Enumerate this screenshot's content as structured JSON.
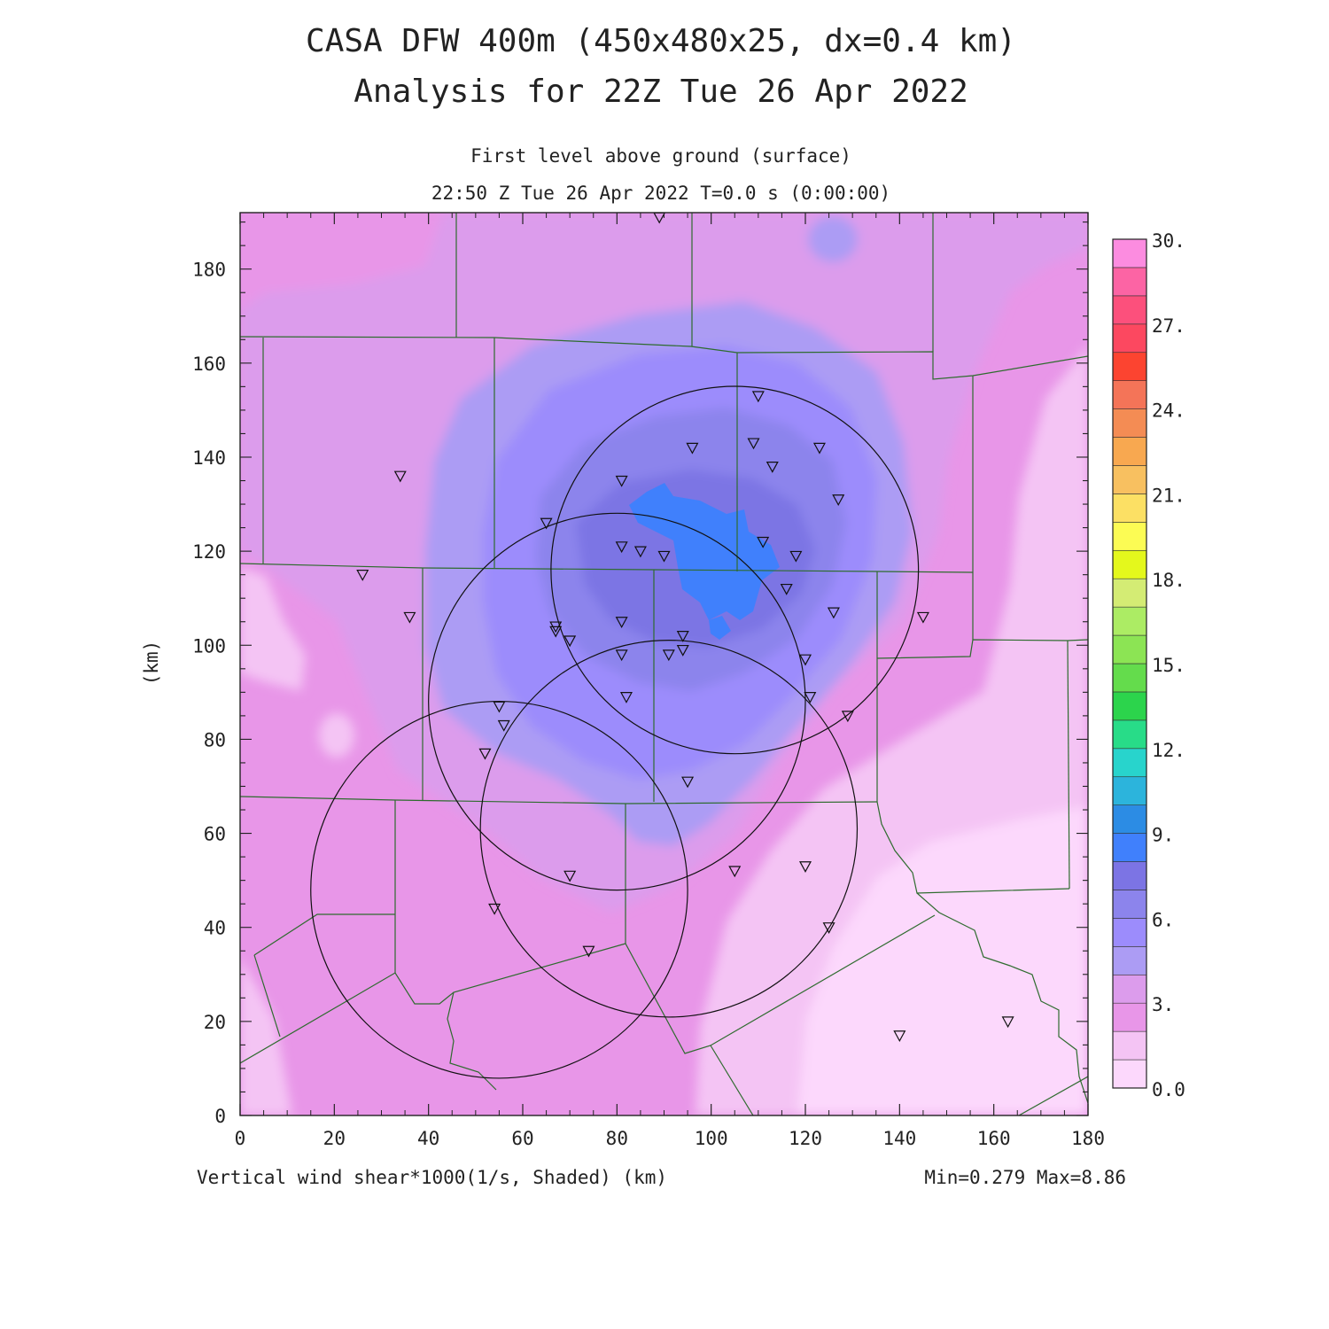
{
  "title": {
    "line1": "CASA DFW 400m (450x480x25, dx=0.4 km)",
    "line2": "Analysis for 22Z Tue 26 Apr 2022"
  },
  "subtitle": {
    "level": "First level above ground (surface)",
    "time": "22:50 Z Tue 26 Apr 2022   T=0.0 s (0:00:00)"
  },
  "axes": {
    "y_label": "(km)",
    "x_tick_labels": [
      "0",
      "20",
      "40",
      "60",
      "80",
      "100",
      "120",
      "140",
      "160",
      "180"
    ],
    "y_tick_labels": [
      "0",
      "20",
      "40",
      "60",
      "80",
      "100",
      "120",
      "140",
      "160",
      "180"
    ]
  },
  "footer": {
    "field": "Vertical wind shear*1000(1/s, Shaded)  (km)",
    "range": "Min=0.279  Max=8.86"
  },
  "colorbar": {
    "labels": [
      "0.0",
      "3.",
      "6.",
      "9.",
      "12.",
      "15.",
      "18.",
      "21.",
      "24.",
      "27.",
      "30."
    ],
    "colors": [
      "#fcd8fc",
      "#f4c4f4",
      "#e896e8",
      "#dc9cec",
      "#ac9cf4",
      "#9c8cfc",
      "#8c84ec",
      "#7c74e4",
      "#4080fc",
      "#2c8ce4",
      "#2cb4dc",
      "#28d4cc",
      "#28dc88",
      "#2cd44c",
      "#64dc4c",
      "#8ce454",
      "#acec64",
      "#d4ec74",
      "#e4f81c",
      "#fcfc54",
      "#fce064",
      "#f8c060",
      "#f8a850",
      "#f48c54",
      "#f47458",
      "#fc4430",
      "#fc4860",
      "#fc507c",
      "#fc64a4",
      "#fc8ce0"
    ]
  },
  "chart_data": {
    "type": "heatmap",
    "field": "Vertical wind shear*1000 (1/s)",
    "xlim": [
      0,
      180
    ],
    "ylim": [
      0,
      192
    ],
    "x_ticks": [
      0,
      20,
      40,
      60,
      80,
      100,
      120,
      140,
      160,
      180
    ],
    "y_ticks": [
      0,
      20,
      40,
      60,
      80,
      100,
      120,
      140,
      160,
      180
    ],
    "color_range": [
      0,
      30
    ],
    "min": 0.279,
    "max": 8.86,
    "radar_rings": [
      {
        "cx": 105,
        "cy": 116,
        "r": 39
      },
      {
        "cx": 80,
        "cy": 88,
        "r": 40
      },
      {
        "cx": 91,
        "cy": 61,
        "r": 40
      },
      {
        "cx": 55,
        "cy": 48,
        "r": 40
      }
    ],
    "stations": [
      [
        89,
        191
      ],
      [
        110,
        153
      ],
      [
        34,
        136
      ],
      [
        96,
        142
      ],
      [
        109,
        143
      ],
      [
        123,
        142
      ],
      [
        113,
        138
      ],
      [
        81,
        135
      ],
      [
        127,
        131
      ],
      [
        65,
        126
      ],
      [
        81,
        121
      ],
      [
        111,
        122
      ],
      [
        85,
        120
      ],
      [
        90,
        119
      ],
      [
        118,
        119
      ],
      [
        26,
        115
      ],
      [
        116,
        112
      ],
      [
        126,
        107
      ],
      [
        36,
        106
      ],
      [
        145,
        106
      ],
      [
        81,
        105
      ],
      [
        67,
        104
      ],
      [
        67,
        103
      ],
      [
        70,
        101
      ],
      [
        94,
        102
      ],
      [
        94,
        99
      ],
      [
        91,
        98
      ],
      [
        81,
        98
      ],
      [
        120,
        97
      ],
      [
        82,
        89
      ],
      [
        121,
        89
      ],
      [
        55,
        87
      ],
      [
        129,
        85
      ],
      [
        56,
        83
      ],
      [
        52,
        77
      ],
      [
        95,
        71
      ],
      [
        120,
        53
      ],
      [
        105,
        52
      ],
      [
        70,
        51
      ],
      [
        54,
        44
      ],
      [
        125,
        40
      ],
      [
        74,
        35
      ],
      [
        163,
        20
      ],
      [
        140,
        17
      ]
    ]
  }
}
